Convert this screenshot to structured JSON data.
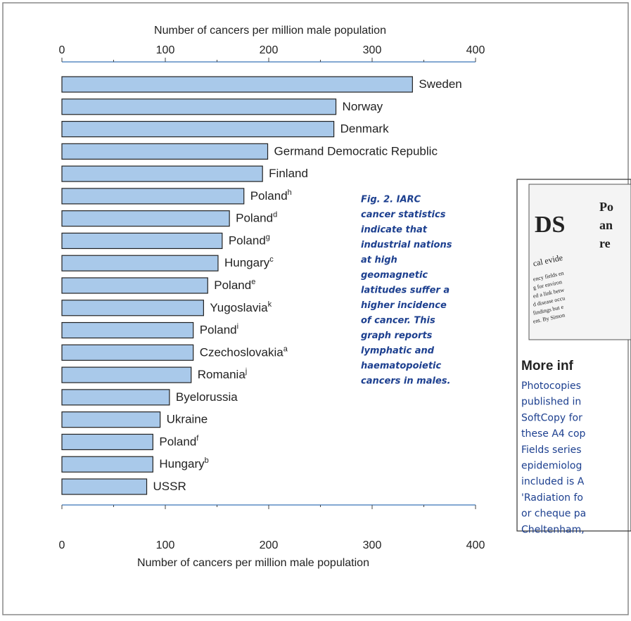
{
  "chart_data": {
    "type": "bar",
    "orientation": "horizontal",
    "xlabel": "Number of cancers per million male population",
    "categories": [
      "Sweden",
      "Norway",
      "Denmark",
      "Germand Democratic Republic",
      "Finland",
      "Poland",
      "Poland",
      "Poland",
      "Hungary",
      "Poland",
      "Yugoslavia",
      "Poland",
      "Czechoslovakia",
      "Romania",
      "Byelorussia",
      "Ukraine",
      "Poland",
      "Hungary",
      "USSR"
    ],
    "superscripts": [
      null,
      null,
      null,
      null,
      null,
      "h",
      "d",
      "g",
      "c",
      "e",
      "k",
      "i",
      "a",
      "j",
      null,
      null,
      "f",
      "b",
      null
    ],
    "values": [
      339,
      265,
      263,
      199,
      194,
      176,
      162,
      155,
      151,
      141,
      137,
      127,
      127,
      125,
      104,
      95,
      88,
      88,
      82
    ],
    "color": "#a9c9ea",
    "xlim": [
      0,
      400
    ],
    "xticks": [
      0,
      100,
      200,
      300,
      400
    ],
    "xminorticks": [
      50,
      150,
      250,
      350
    ]
  },
  "caption": [
    "Fig. 2. IARC",
    "cancer statistics",
    "indicate that",
    "industrial nations",
    "at high",
    "geomagnetic",
    "latitudes suffer a",
    "higher incidence",
    "of cancer. This",
    "graph reports",
    "lymphatic and",
    "haematopoietic",
    "cancers in males."
  ],
  "sidebar": {
    "inset": [
      "DS",
      "Po",
      "an",
      "re",
      "cal evide",
      "ency fields en",
      "g for environ",
      "ed a link betw",
      "d disease occu",
      "findings but e",
      "ent. By Simon"
    ],
    "heading": "More inf",
    "lines": [
      "Photocopies",
      "published in",
      "SoftCopy for",
      "these A4 cop",
      "Fields series",
      "epidemiolog",
      "included is A",
      "'Radiation fo",
      "or cheque pa",
      "Cheltenham,"
    ]
  }
}
